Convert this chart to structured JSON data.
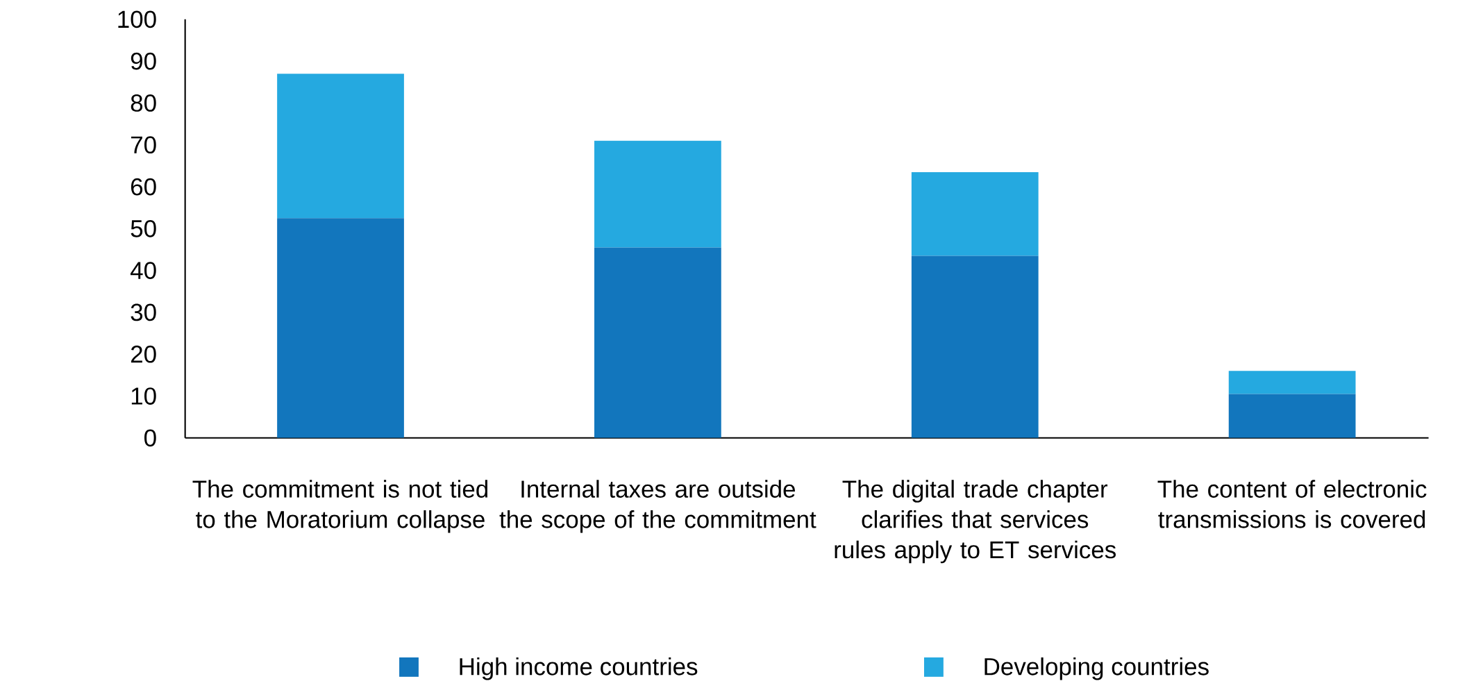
{
  "chart_data": {
    "type": "bar",
    "stacked": true,
    "categories": [
      "The commitment is not tied to the Moratorium collapse",
      "Internal taxes are outside the scope of the commitment",
      "The digital trade chapter clarifies that services rules apply to ET services",
      "The content of electronic transmissions is covered"
    ],
    "series": [
      {
        "name": "High income countries",
        "color": "#1276bd",
        "values": [
          52.5,
          45.5,
          43.5,
          10.5
        ]
      },
      {
        "name": "Developing countries",
        "color": "#25a9e0",
        "values": [
          34.5,
          25.5,
          20,
          5.5
        ]
      }
    ],
    "ylim": [
      0,
      100
    ],
    "yticks": [
      0,
      10,
      20,
      30,
      40,
      50,
      60,
      70,
      80,
      90,
      100
    ],
    "legend": "bottom"
  }
}
